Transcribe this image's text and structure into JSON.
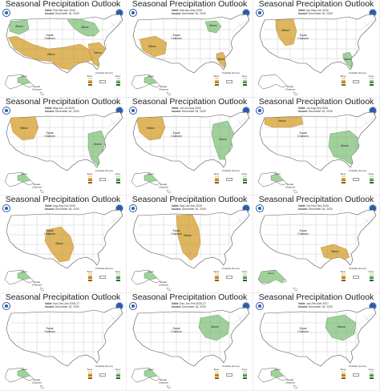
{
  "colors": {
    "above": "#8fc98a",
    "above_dark": "#3f8f3f",
    "below": "#d9a93f",
    "below_dark": "#b77a1f",
    "ocean": "#ffffff",
    "state_line": "#9a9a9a"
  },
  "legend": {
    "title": "Probability (Percent)",
    "below_label": "Below",
    "above_label": "Above",
    "ec_label": "Equal Chances"
  },
  "panels": [
    {
      "title": "Seasonal Precipitation Outlook",
      "valid": "Feb-Mar-Apr 2026",
      "issued": "December 18, 2025",
      "above": [
        "great_lakes",
        "northwest",
        "alaska_se"
      ],
      "below": [
        "south_tier",
        "southeast"
      ],
      "labels": {
        "above": "Above",
        "below": "Below",
        "ec": "Equal\nChances",
        "ak": "Equal\nChances"
      }
    },
    {
      "title": "Seasonal Precipitation Outlook",
      "valid": "Mar-Apr-May 2026",
      "issued": "December 18, 2025",
      "above": [
        "great_lakes_small",
        "alaska_se"
      ],
      "below": [
        "southwest",
        "florida"
      ],
      "labels": {
        "above": "Above",
        "below": "Below",
        "ec": "Equal\nChances",
        "ak": "Equal\nChances"
      }
    },
    {
      "title": "Seasonal Precipitation Outlook",
      "valid": "Apr-May-Jun 2026",
      "issued": "December 18, 2025",
      "above": [
        "florida"
      ],
      "below": [
        "rockies"
      ],
      "labels": {
        "above": "Above",
        "below": "Below",
        "ec": "Equal\nChances",
        "ak": "Equal\nChances"
      }
    },
    {
      "title": "Seasonal Precipitation Outlook",
      "valid": "May-Jun-Jul 2026",
      "issued": "December 18, 2025",
      "above": [
        "southeast_coast",
        "alaska_se"
      ],
      "below": [
        "northwest_rockies"
      ],
      "labels": {
        "above": "Above",
        "below": "Below",
        "ec": "Equal\nChances",
        "ak": "Equal\nChances"
      }
    },
    {
      "title": "Seasonal Precipitation Outlook",
      "valid": "Jun-Jul-Aug 2026",
      "issued": "December 18, 2025",
      "above": [
        "east_coast",
        "alaska_se"
      ],
      "below": [
        "northwest_rockies"
      ],
      "labels": {
        "above": "Above",
        "below": "Below",
        "ec": "Equal\nChances",
        "ak": "Equal\nChances"
      }
    },
    {
      "title": "Seasonal Precipitation Outlook",
      "valid": "Jul-Aug-Sep 2026",
      "issued": "December 18, 2025",
      "above": [
        "southeast_big",
        "alaska_se"
      ],
      "below": [
        "northern_rockies"
      ],
      "labels": {
        "above": "Above",
        "below": "Below",
        "ec": "Equal\nChances",
        "ak": "Equal\nChances"
      }
    },
    {
      "title": "Seasonal Precipitation Outlook",
      "valid": "Aug-Sep-Oct 2026",
      "issued": "December 18, 2025",
      "above": [
        "alaska_se"
      ],
      "below": [
        "southern_plains"
      ],
      "labels": {
        "above": "Above",
        "below": "Below",
        "ec": "Equal\nChances",
        "ak": "Equal\nChances"
      }
    },
    {
      "title": "Seasonal Precipitation Outlook",
      "valid": "Sep-Oct-Nov 2026",
      "issued": "December 18, 2025",
      "above": [
        "alaska_se"
      ],
      "below": [
        "central_plains"
      ],
      "labels": {
        "above": "Above",
        "below": "Below",
        "ec": "Equal\nChances",
        "ak": "Equal\nChances"
      }
    },
    {
      "title": "Seasonal Precipitation Outlook",
      "valid": "Oct-Nov-Dec 2026",
      "issued": "December 18, 2025",
      "above": [
        "alaska_most"
      ],
      "below": [
        "gulf_coast"
      ],
      "labels": {
        "above": "Above",
        "below": "Below",
        "ec": "Equal\nChances",
        "ak": ""
      }
    },
    {
      "title": "Seasonal Precipitation Outlook",
      "valid": "Nov-Dec-Jan 2026-27",
      "issued": "December 18, 2025",
      "above": [
        "alaska_se"
      ],
      "below": [],
      "labels": {
        "above": "Above",
        "below": "",
        "ec": "Equal\nChances",
        "ak": "Equal\nChances"
      }
    },
    {
      "title": "Seasonal Precipitation Outlook",
      "valid": "Dec-Jan-Feb 2026-27",
      "issued": "December 18, 2025",
      "above": [
        "ohio_valley",
        "alaska_se"
      ],
      "below": [],
      "labels": {
        "above": "Above",
        "below": "",
        "ec": "Equal\nChances",
        "ak": "Equal\nChances"
      }
    },
    {
      "title": "Seasonal Precipitation Outlook",
      "valid": "Jan-Feb-Mar 2027",
      "issued": "December 18, 2025",
      "above": [
        "ohio_valley",
        "alaska_se"
      ],
      "below": [],
      "labels": {
        "above": "Above",
        "below": "",
        "ec": "Equal\nChances",
        "ak": "Equal\nChances"
      }
    }
  ]
}
